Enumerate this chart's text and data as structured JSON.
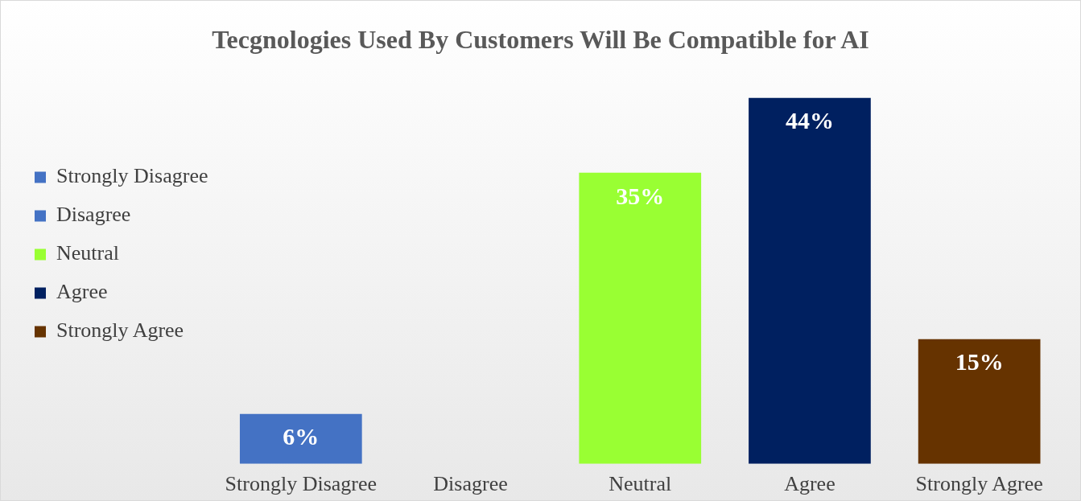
{
  "chart_data": {
    "type": "bar",
    "title": "Tecgnologies Used By Customers Will Be Compatible for AI",
    "categories": [
      "Strongly Disagree",
      "Disagree",
      "Neutral",
      "Agree",
      "Strongly Agree"
    ],
    "series": [
      {
        "name": "Strongly Disagree",
        "color": "#4472c4",
        "values": [
          6,
          null,
          null,
          null,
          null
        ],
        "value_labels": [
          "6%",
          null,
          null,
          null,
          null
        ]
      },
      {
        "name": "Disagree",
        "color": "#4472c4",
        "values": [
          null,
          0,
          null,
          null,
          null
        ],
        "value_labels": [
          null,
          null,
          null,
          null,
          null
        ]
      },
      {
        "name": "Neutral",
        "color": "#99ff33",
        "values": [
          null,
          null,
          35,
          null,
          null
        ],
        "value_labels": [
          null,
          null,
          "35%",
          null,
          null
        ]
      },
      {
        "name": "Agree",
        "color": "#002060",
        "values": [
          null,
          null,
          null,
          44,
          null
        ],
        "value_labels": [
          null,
          null,
          null,
          "44%",
          null
        ]
      },
      {
        "name": "Strongly Agree",
        "color": "#663300",
        "values": [
          null,
          null,
          null,
          null,
          15
        ],
        "value_labels": [
          null,
          null,
          null,
          null,
          "15%"
        ]
      }
    ],
    "legend": "left",
    "grid": false
  }
}
